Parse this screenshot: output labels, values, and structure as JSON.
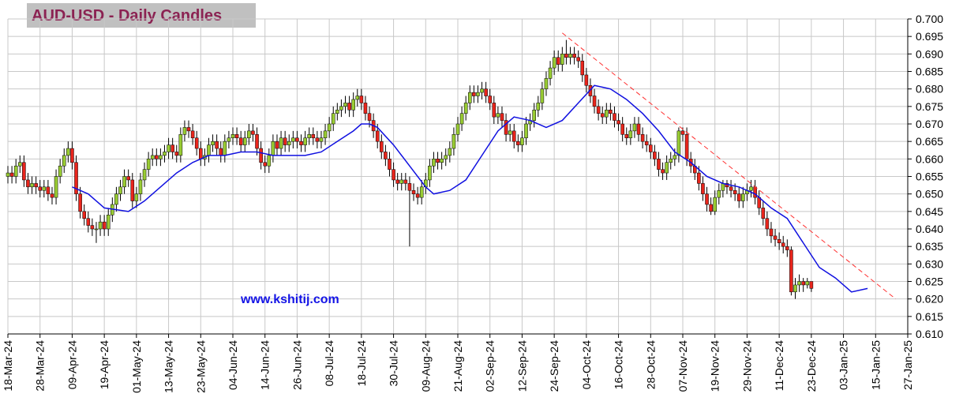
{
  "chart_data": {
    "type": "candlestick",
    "title": "AUD-USD - Daily Candles",
    "annotation": "www.kshitij.com",
    "colors": {
      "up": "#99cc33",
      "down": "#e8251c",
      "outline": "#000000"
    },
    "candles": [
      [
        0.655,
        0.658,
        0.653,
        0.656
      ],
      [
        0.656,
        0.658,
        0.653,
        0.655
      ],
      [
        0.655,
        0.66,
        0.653,
        0.658
      ],
      [
        0.658,
        0.661,
        0.656,
        0.659
      ],
      [
        0.659,
        0.661,
        0.652,
        0.654
      ],
      [
        0.654,
        0.656,
        0.65,
        0.652
      ],
      [
        0.652,
        0.655,
        0.65,
        0.653
      ],
      [
        0.653,
        0.655,
        0.65,
        0.652
      ],
      [
        0.652,
        0.654,
        0.649,
        0.651
      ],
      [
        0.651,
        0.654,
        0.649,
        0.652
      ],
      [
        0.652,
        0.654,
        0.648,
        0.65
      ],
      [
        0.65,
        0.652,
        0.647,
        0.649
      ],
      [
        0.649,
        0.657,
        0.647,
        0.655
      ],
      [
        0.655,
        0.66,
        0.653,
        0.658
      ],
      [
        0.658,
        0.663,
        0.656,
        0.661
      ],
      [
        0.661,
        0.665,
        0.659,
        0.663
      ],
      [
        0.663,
        0.665,
        0.657,
        0.659
      ],
      [
        0.659,
        0.661,
        0.648,
        0.65
      ],
      [
        0.65,
        0.652,
        0.643,
        0.645
      ],
      [
        0.645,
        0.647,
        0.641,
        0.643
      ],
      [
        0.643,
        0.645,
        0.639,
        0.641
      ],
      [
        0.641,
        0.643,
        0.638,
        0.64
      ],
      [
        0.64,
        0.642,
        0.636,
        0.64
      ],
      [
        0.64,
        0.644,
        0.638,
        0.642
      ],
      [
        0.642,
        0.644,
        0.638,
        0.64
      ],
      [
        0.64,
        0.646,
        0.638,
        0.644
      ],
      [
        0.644,
        0.649,
        0.642,
        0.647
      ],
      [
        0.647,
        0.652,
        0.645,
        0.65
      ],
      [
        0.65,
        0.654,
        0.648,
        0.652
      ],
      [
        0.652,
        0.657,
        0.65,
        0.655
      ],
      [
        0.655,
        0.657,
        0.652,
        0.654
      ],
      [
        0.654,
        0.656,
        0.646,
        0.648
      ],
      [
        0.648,
        0.652,
        0.646,
        0.65
      ],
      [
        0.65,
        0.656,
        0.648,
        0.654
      ],
      [
        0.654,
        0.659,
        0.652,
        0.657
      ],
      [
        0.657,
        0.662,
        0.655,
        0.66
      ],
      [
        0.66,
        0.663,
        0.658,
        0.661
      ],
      [
        0.661,
        0.663,
        0.658,
        0.66
      ],
      [
        0.66,
        0.663,
        0.658,
        0.661
      ],
      [
        0.661,
        0.664,
        0.659,
        0.662
      ],
      [
        0.662,
        0.666,
        0.66,
        0.664
      ],
      [
        0.664,
        0.666,
        0.66,
        0.662
      ],
      [
        0.662,
        0.664,
        0.659,
        0.661
      ],
      [
        0.661,
        0.669,
        0.659,
        0.667
      ],
      [
        0.667,
        0.671,
        0.665,
        0.669
      ],
      [
        0.669,
        0.671,
        0.666,
        0.668
      ],
      [
        0.668,
        0.67,
        0.664,
        0.666
      ],
      [
        0.666,
        0.668,
        0.661,
        0.663
      ],
      [
        0.663,
        0.665,
        0.658,
        0.66
      ],
      [
        0.66,
        0.663,
        0.658,
        0.661
      ],
      [
        0.661,
        0.666,
        0.659,
        0.664
      ],
      [
        0.664,
        0.667,
        0.662,
        0.665
      ],
      [
        0.665,
        0.667,
        0.661,
        0.663
      ],
      [
        0.663,
        0.665,
        0.659,
        0.661
      ],
      [
        0.661,
        0.667,
        0.659,
        0.665
      ],
      [
        0.665,
        0.668,
        0.663,
        0.666
      ],
      [
        0.666,
        0.669,
        0.664,
        0.667
      ],
      [
        0.667,
        0.669,
        0.664,
        0.666
      ],
      [
        0.666,
        0.668,
        0.662,
        0.664
      ],
      [
        0.664,
        0.668,
        0.662,
        0.666
      ],
      [
        0.666,
        0.67,
        0.664,
        0.668
      ],
      [
        0.668,
        0.67,
        0.665,
        0.667
      ],
      [
        0.667,
        0.669,
        0.661,
        0.663
      ],
      [
        0.663,
        0.665,
        0.657,
        0.659
      ],
      [
        0.659,
        0.661,
        0.656,
        0.658
      ],
      [
        0.658,
        0.663,
        0.656,
        0.661
      ],
      [
        0.661,
        0.667,
        0.659,
        0.665
      ],
      [
        0.665,
        0.667,
        0.661,
        0.663
      ],
      [
        0.663,
        0.668,
        0.661,
        0.666
      ],
      [
        0.666,
        0.668,
        0.662,
        0.664
      ],
      [
        0.664,
        0.667,
        0.662,
        0.665
      ],
      [
        0.665,
        0.668,
        0.663,
        0.666
      ],
      [
        0.666,
        0.668,
        0.663,
        0.665
      ],
      [
        0.665,
        0.667,
        0.662,
        0.664
      ],
      [
        0.664,
        0.668,
        0.662,
        0.666
      ],
      [
        0.666,
        0.669,
        0.664,
        0.667
      ],
      [
        0.667,
        0.669,
        0.664,
        0.666
      ],
      [
        0.666,
        0.668,
        0.663,
        0.665
      ],
      [
        0.665,
        0.668,
        0.663,
        0.666
      ],
      [
        0.666,
        0.67,
        0.664,
        0.668
      ],
      [
        0.668,
        0.672,
        0.666,
        0.67
      ],
      [
        0.67,
        0.675,
        0.668,
        0.673
      ],
      [
        0.673,
        0.676,
        0.671,
        0.674
      ],
      [
        0.674,
        0.677,
        0.672,
        0.675
      ],
      [
        0.675,
        0.678,
        0.673,
        0.676
      ],
      [
        0.676,
        0.678,
        0.672,
        0.674
      ],
      [
        0.674,
        0.679,
        0.672,
        0.677
      ],
      [
        0.677,
        0.68,
        0.675,
        0.678
      ],
      [
        0.678,
        0.68,
        0.674,
        0.676
      ],
      [
        0.676,
        0.678,
        0.671,
        0.673
      ],
      [
        0.673,
        0.675,
        0.669,
        0.671
      ],
      [
        0.671,
        0.673,
        0.666,
        0.668
      ],
      [
        0.668,
        0.67,
        0.663,
        0.665
      ],
      [
        0.665,
        0.667,
        0.66,
        0.662
      ],
      [
        0.662,
        0.664,
        0.658,
        0.66
      ],
      [
        0.66,
        0.662,
        0.655,
        0.657
      ],
      [
        0.657,
        0.659,
        0.652,
        0.654
      ],
      [
        0.654,
        0.656,
        0.651,
        0.653
      ],
      [
        0.653,
        0.656,
        0.651,
        0.654
      ],
      [
        0.654,
        0.656,
        0.651,
        0.653
      ],
      [
        0.653,
        0.655,
        0.635,
        0.651
      ],
      [
        0.651,
        0.653,
        0.648,
        0.65
      ],
      [
        0.65,
        0.652,
        0.647,
        0.649
      ],
      [
        0.649,
        0.654,
        0.647,
        0.652
      ],
      [
        0.652,
        0.656,
        0.65,
        0.654
      ],
      [
        0.654,
        0.66,
        0.652,
        0.658
      ],
      [
        0.658,
        0.662,
        0.656,
        0.66
      ],
      [
        0.66,
        0.662,
        0.657,
        0.659
      ],
      [
        0.659,
        0.662,
        0.657,
        0.66
      ],
      [
        0.66,
        0.663,
        0.658,
        0.661
      ],
      [
        0.661,
        0.665,
        0.659,
        0.663
      ],
      [
        0.663,
        0.669,
        0.661,
        0.667
      ],
      [
        0.667,
        0.672,
        0.665,
        0.67
      ],
      [
        0.67,
        0.675,
        0.668,
        0.673
      ],
      [
        0.673,
        0.678,
        0.671,
        0.676
      ],
      [
        0.676,
        0.681,
        0.674,
        0.679
      ],
      [
        0.679,
        0.681,
        0.676,
        0.678
      ],
      [
        0.678,
        0.681,
        0.676,
        0.679
      ],
      [
        0.679,
        0.682,
        0.677,
        0.68
      ],
      [
        0.68,
        0.682,
        0.676,
        0.678
      ],
      [
        0.678,
        0.68,
        0.674,
        0.676
      ],
      [
        0.676,
        0.678,
        0.67,
        0.672
      ],
      [
        0.672,
        0.675,
        0.67,
        0.673
      ],
      [
        0.673,
        0.675,
        0.669,
        0.671
      ],
      [
        0.671,
        0.673,
        0.665,
        0.667
      ],
      [
        0.667,
        0.67,
        0.665,
        0.668
      ],
      [
        0.668,
        0.67,
        0.663,
        0.665
      ],
      [
        0.665,
        0.667,
        0.662,
        0.664
      ],
      [
        0.664,
        0.668,
        0.662,
        0.666
      ],
      [
        0.666,
        0.672,
        0.664,
        0.67
      ],
      [
        0.67,
        0.673,
        0.668,
        0.671
      ],
      [
        0.671,
        0.676,
        0.669,
        0.674
      ],
      [
        0.674,
        0.678,
        0.672,
        0.676
      ],
      [
        0.676,
        0.682,
        0.674,
        0.68
      ],
      [
        0.68,
        0.685,
        0.678,
        0.683
      ],
      [
        0.683,
        0.688,
        0.681,
        0.686
      ],
      [
        0.686,
        0.691,
        0.684,
        0.689
      ],
      [
        0.689,
        0.691,
        0.685,
        0.687
      ],
      [
        0.687,
        0.692,
        0.685,
        0.69
      ],
      [
        0.69,
        0.694,
        0.687,
        0.689
      ],
      [
        0.689,
        0.692,
        0.687,
        0.69
      ],
      [
        0.69,
        0.692,
        0.687,
        0.689
      ],
      [
        0.689,
        0.691,
        0.686,
        0.688
      ],
      [
        0.688,
        0.69,
        0.682,
        0.684
      ],
      [
        0.684,
        0.686,
        0.679,
        0.681
      ],
      [
        0.681,
        0.683,
        0.676,
        0.678
      ],
      [
        0.678,
        0.68,
        0.673,
        0.675
      ],
      [
        0.675,
        0.677,
        0.671,
        0.673
      ],
      [
        0.673,
        0.675,
        0.67,
        0.672
      ],
      [
        0.672,
        0.676,
        0.67,
        0.674
      ],
      [
        0.674,
        0.676,
        0.671,
        0.673
      ],
      [
        0.673,
        0.675,
        0.669,
        0.671
      ],
      [
        0.671,
        0.673,
        0.668,
        0.67
      ],
      [
        0.67,
        0.672,
        0.665,
        0.667
      ],
      [
        0.667,
        0.669,
        0.664,
        0.666
      ],
      [
        0.666,
        0.67,
        0.664,
        0.668
      ],
      [
        0.668,
        0.672,
        0.666,
        0.67
      ],
      [
        0.67,
        0.672,
        0.665,
        0.667
      ],
      [
        0.667,
        0.669,
        0.663,
        0.665
      ],
      [
        0.665,
        0.667,
        0.662,
        0.664
      ],
      [
        0.664,
        0.666,
        0.66,
        0.662
      ],
      [
        0.662,
        0.664,
        0.658,
        0.66
      ],
      [
        0.66,
        0.662,
        0.655,
        0.657
      ],
      [
        0.657,
        0.659,
        0.654,
        0.656
      ],
      [
        0.656,
        0.661,
        0.654,
        0.659
      ],
      [
        0.659,
        0.662,
        0.657,
        0.66
      ],
      [
        0.66,
        0.663,
        0.658,
        0.661
      ],
      [
        0.661,
        0.669,
        0.659,
        0.668
      ],
      [
        0.668,
        0.669,
        0.665,
        0.667
      ],
      [
        0.667,
        0.669,
        0.658,
        0.66
      ],
      [
        0.66,
        0.662,
        0.656,
        0.658
      ],
      [
        0.658,
        0.66,
        0.654,
        0.656
      ],
      [
        0.656,
        0.658,
        0.651,
        0.653
      ],
      [
        0.653,
        0.655,
        0.648,
        0.65
      ],
      [
        0.65,
        0.652,
        0.645,
        0.647
      ],
      [
        0.647,
        0.649,
        0.644,
        0.645
      ],
      [
        0.645,
        0.651,
        0.644,
        0.649
      ],
      [
        0.649,
        0.653,
        0.647,
        0.651
      ],
      [
        0.651,
        0.654,
        0.649,
        0.653
      ],
      [
        0.653,
        0.654,
        0.65,
        0.652
      ],
      [
        0.652,
        0.654,
        0.649,
        0.651
      ],
      [
        0.651,
        0.653,
        0.648,
        0.65
      ],
      [
        0.65,
        0.652,
        0.646,
        0.648
      ],
      [
        0.648,
        0.652,
        0.646,
        0.65
      ],
      [
        0.65,
        0.653,
        0.648,
        0.651
      ],
      [
        0.651,
        0.654,
        0.649,
        0.652
      ],
      [
        0.652,
        0.654,
        0.647,
        0.649
      ],
      [
        0.649,
        0.651,
        0.644,
        0.646
      ],
      [
        0.646,
        0.648,
        0.641,
        0.643
      ],
      [
        0.643,
        0.645,
        0.638,
        0.64
      ],
      [
        0.64,
        0.642,
        0.636,
        0.638
      ],
      [
        0.638,
        0.64,
        0.635,
        0.637
      ],
      [
        0.637,
        0.639,
        0.634,
        0.636
      ],
      [
        0.636,
        0.638,
        0.633,
        0.635
      ],
      [
        0.635,
        0.637,
        0.632,
        0.634
      ],
      [
        0.634,
        0.635,
        0.621,
        0.622
      ],
      [
        0.622,
        0.626,
        0.62,
        0.624
      ],
      [
        0.624,
        0.627,
        0.622,
        0.625
      ],
      [
        0.625,
        0.626,
        0.622,
        0.624
      ],
      [
        0.624,
        0.626,
        0.623,
        0.625
      ],
      [
        0.625,
        0.625,
        0.622,
        0.623
      ]
    ],
    "ma": {
      "color": "#1010e0",
      "x": [
        16,
        20,
        24,
        30,
        34,
        38,
        42,
        46,
        50,
        54,
        58,
        62,
        66,
        70,
        74,
        78,
        82,
        86,
        88,
        90,
        92,
        96,
        100,
        104,
        106,
        110,
        114,
        118,
        122,
        126,
        130,
        134,
        138,
        142,
        146,
        150,
        154,
        158,
        162,
        166,
        170,
        174,
        178,
        182,
        186,
        190,
        194,
        198,
        202,
        206,
        210,
        214
      ],
      "values": [
        0.652,
        0.65,
        0.646,
        0.645,
        0.648,
        0.652,
        0.656,
        0.659,
        0.661,
        0.661,
        0.662,
        0.662,
        0.661,
        0.661,
        0.661,
        0.662,
        0.665,
        0.668,
        0.67,
        0.67,
        0.669,
        0.664,
        0.658,
        0.652,
        0.65,
        0.651,
        0.654,
        0.661,
        0.668,
        0.672,
        0.671,
        0.669,
        0.671,
        0.676,
        0.681,
        0.68,
        0.677,
        0.673,
        0.668,
        0.662,
        0.659,
        0.655,
        0.653,
        0.652,
        0.65,
        0.646,
        0.643,
        0.636,
        0.629,
        0.626,
        0.622,
        0.623
      ]
    },
    "trendline": {
      "color": "#ff3030",
      "dashed": true,
      "x": [
        138,
        221
      ],
      "values": [
        0.696,
        0.62
      ]
    },
    "xlim": [
      0,
      224
    ],
    "xticks": [
      {
        "value": 0,
        "label": "18-Mar-24"
      },
      {
        "value": 8,
        "label": "28-Mar-24"
      },
      {
        "value": 16,
        "label": "09-Apr-24"
      },
      {
        "value": 24,
        "label": "19-Apr-24"
      },
      {
        "value": 32,
        "label": "01-May-24"
      },
      {
        "value": 40,
        "label": "13-May-24"
      },
      {
        "value": 48,
        "label": "23-May-24"
      },
      {
        "value": 56,
        "label": "04-Jun-24"
      },
      {
        "value": 64,
        "label": "14-Jun-24"
      },
      {
        "value": 72,
        "label": "26-Jun-24"
      },
      {
        "value": 80,
        "label": "08-Jul-24"
      },
      {
        "value": 88,
        "label": "18-Jul-24"
      },
      {
        "value": 96,
        "label": "30-Jul-24"
      },
      {
        "value": 104,
        "label": "09-Aug-24"
      },
      {
        "value": 112,
        "label": "21-Aug-24"
      },
      {
        "value": 120,
        "label": "02-Sep-24"
      },
      {
        "value": 128,
        "label": "12-Sep-24"
      },
      {
        "value": 136,
        "label": "24-Sep-24"
      },
      {
        "value": 144,
        "label": "04-Oct-24"
      },
      {
        "value": 152,
        "label": "16-Oct-24"
      },
      {
        "value": 160,
        "label": "28-Oct-24"
      },
      {
        "value": 168,
        "label": "07-Nov-24"
      },
      {
        "value": 176,
        "label": "19-Nov-24"
      },
      {
        "value": 184,
        "label": "29-Nov-24"
      },
      {
        "value": 192,
        "label": "11-Dec-24"
      },
      {
        "value": 200,
        "label": "23-Dec-24"
      },
      {
        "value": 208,
        "label": "03-Jan-25"
      },
      {
        "value": 216,
        "label": "15-Jan-25"
      },
      {
        "value": 224,
        "label": "27-Jan-25"
      }
    ],
    "ylim": [
      0.61,
      0.7
    ],
    "yticks": [
      {
        "value": 0.61,
        "label": "0.610"
      },
      0.615,
      {
        "value": 0.62,
        "label": "0.620"
      },
      0.625,
      {
        "value": 0.63,
        "label": "0.630"
      },
      0.635,
      {
        "value": 0.64,
        "label": "0.640"
      },
      0.645,
      {
        "value": 0.65,
        "label": "0.650"
      },
      0.655,
      {
        "value": 0.66,
        "label": "0.660"
      },
      0.665,
      {
        "value": 0.67,
        "label": "0.670"
      },
      0.675,
      {
        "value": 0.68,
        "label": "0.680"
      },
      0.685,
      {
        "value": 0.69,
        "label": "0.690"
      },
      0.695,
      {
        "value": 0.7,
        "label": "0.700"
      }
    ],
    "grid": true
  }
}
